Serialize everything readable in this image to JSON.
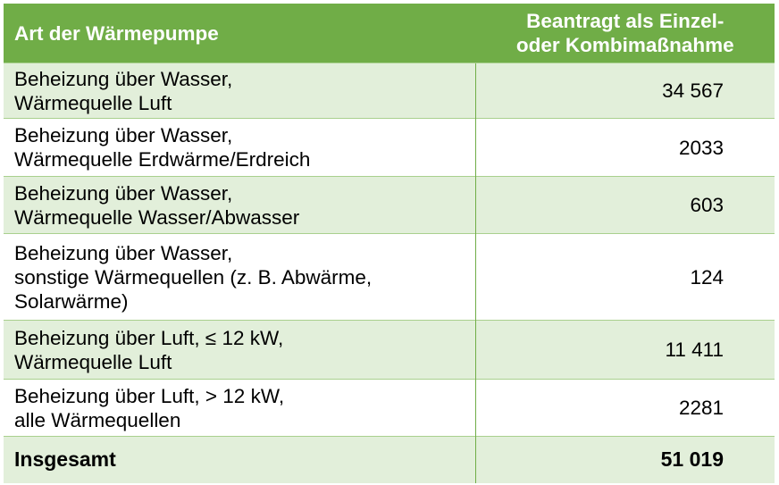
{
  "table": {
    "headers": [
      "Art der Wärmepumpe",
      "Beantragt als Einzel-\noder Kombimaßnahme"
    ],
    "rows": [
      {
        "label": "Beheizung über Wasser,\nWärmequelle Luft",
        "value": "34 567"
      },
      {
        "label": "Beheizung über Wasser,\nWärmequelle Erdwärme/Erdreich",
        "value": "2033"
      },
      {
        "label": "Beheizung über Wasser,\nWärmequelle Wasser/Abwasser",
        "value": "603"
      },
      {
        "label": "Beheizung über Wasser,\nsonstige Wärmequellen (z. B. Abwärme,\nSolarwärme)",
        "value": "124"
      },
      {
        "label": "Beheizung über Luft, ≤ 12 kW,\nWärmequelle Luft",
        "value": "11 411"
      },
      {
        "label": "Beheizung über Luft, > 12 kW,\nalle Wärmequellen",
        "value": "2281"
      }
    ],
    "total": {
      "label": "Insgesamt",
      "value": "51 019"
    }
  },
  "colors": {
    "header": "#70ad47",
    "stripe": "#e2efda",
    "border": "#a9d08e"
  }
}
